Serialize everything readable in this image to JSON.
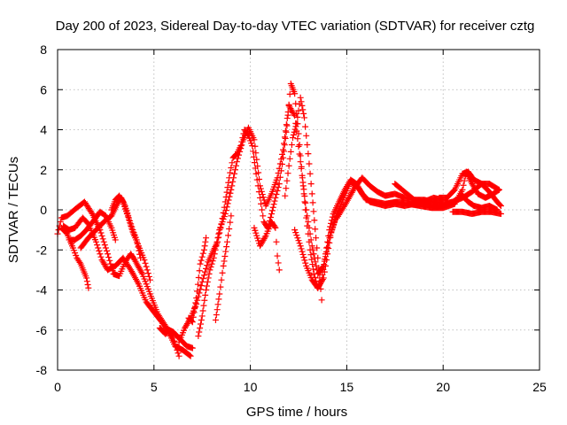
{
  "chart_data": {
    "type": "scatter",
    "title": "Day 200 of 2023, Sidereal Day-to-day VTEC variation (SDTVAR) for receiver cztg",
    "xlabel": "GPS time / hours",
    "ylabel": "SDTVAR / TECUs",
    "xlim": [
      0,
      25
    ],
    "ylim": [
      -8,
      8
    ],
    "xticks": [
      0,
      5,
      10,
      15,
      20,
      25
    ],
    "yticks": [
      -8,
      -6,
      -4,
      -2,
      0,
      2,
      4,
      6,
      8
    ],
    "grid": true,
    "marker": "plus",
    "color": "#ff0000",
    "series": [
      {
        "tracks": [
          [
            [
              0.0,
              -1.2
            ],
            [
              0.2,
              -0.4
            ],
            [
              0.5,
              -0.3
            ],
            [
              1.0,
              0.1
            ],
            [
              1.4,
              0.4
            ],
            [
              1.8,
              -0.2
            ],
            [
              2.2,
              -1.0
            ],
            [
              2.6,
              -2.2
            ],
            [
              2.9,
              -3.2
            ],
            [
              3.2,
              -3.3
            ],
            [
              3.5,
              -2.6
            ],
            [
              3.8,
              -2.2
            ],
            [
              4.0,
              -2.5
            ],
            [
              4.4,
              -3.2
            ],
            [
              4.8,
              -4.2
            ],
            [
              5.2,
              -5.2
            ],
            [
              5.6,
              -5.8
            ],
            [
              6.0,
              -6.4
            ],
            [
              6.3,
              -7.3
            ]
          ],
          [
            [
              0.3,
              -0.8
            ],
            [
              0.6,
              -1.0
            ],
            [
              0.9,
              -0.9
            ],
            [
              1.3,
              -0.4
            ],
            [
              1.6,
              -0.7
            ],
            [
              2.0,
              -1.6
            ],
            [
              2.3,
              -2.5
            ],
            [
              2.6,
              -3.0
            ],
            [
              3.0,
              -2.8
            ],
            [
              3.4,
              -2.4
            ],
            [
              3.8,
              -3.0
            ],
            [
              4.2,
              -3.7
            ],
            [
              4.6,
              -4.6
            ],
            [
              5.0,
              -5.1
            ],
            [
              5.4,
              -5.6
            ],
            [
              5.8,
              -6.2
            ],
            [
              6.1,
              -6.8
            ],
            [
              6.5,
              -7.0
            ],
            [
              6.9,
              -7.3
            ]
          ],
          [
            [
              0.2,
              -0.9
            ],
            [
              0.5,
              -1.2
            ],
            [
              0.8,
              -1.9
            ],
            [
              1.0,
              -2.4
            ],
            [
              1.2,
              -2.7
            ],
            [
              1.5,
              -3.4
            ],
            [
              1.6,
              -3.9
            ]
          ],
          [
            [
              0.6,
              -1.5
            ],
            [
              0.9,
              -1.5
            ],
            [
              1.2,
              -1.3
            ],
            [
              1.5,
              -1.0
            ],
            [
              1.9,
              -0.5
            ],
            [
              2.2,
              -0.1
            ],
            [
              2.5,
              -0.3
            ],
            [
              2.8,
              -0.9
            ],
            [
              3.0,
              -1.5
            ]
          ],
          [
            [
              1.2,
              -1.9
            ],
            [
              1.6,
              -1.4
            ],
            [
              2.0,
              -1.0
            ],
            [
              2.4,
              -0.6
            ],
            [
              2.8,
              -0.3
            ],
            [
              3.1,
              0.3
            ],
            [
              3.3,
              0.6
            ],
            [
              3.5,
              0.2
            ],
            [
              3.7,
              -0.4
            ],
            [
              3.9,
              -1.0
            ],
            [
              4.1,
              -1.5
            ],
            [
              4.3,
              -2.4
            ]
          ],
          [
            [
              2.8,
              0.0
            ],
            [
              3.0,
              0.5
            ],
            [
              3.2,
              0.7
            ],
            [
              3.4,
              0.4
            ],
            [
              3.6,
              -0.2
            ],
            [
              3.9,
              -1.1
            ],
            [
              4.2,
              -1.8
            ],
            [
              4.5,
              -2.5
            ],
            [
              4.8,
              -3.5
            ]
          ],
          [
            [
              5.3,
              -5.9
            ],
            [
              5.6,
              -6.2
            ],
            [
              5.8,
              -6.0
            ],
            [
              6.0,
              -6.1
            ],
            [
              6.2,
              -6.3
            ],
            [
              6.4,
              -6.5
            ],
            [
              6.7,
              -6.8
            ],
            [
              7.0,
              -6.9
            ]
          ],
          [
            [
              6.3,
              -6.6
            ],
            [
              6.6,
              -5.9
            ],
            [
              6.9,
              -5.4
            ],
            [
              7.2,
              -4.7
            ],
            [
              7.5,
              -3.6
            ],
            [
              7.8,
              -2.6
            ],
            [
              8.1,
              -2.0
            ],
            [
              8.3,
              -1.6
            ],
            [
              8.5,
              -0.7
            ],
            [
              8.7,
              0.4
            ],
            [
              8.9,
              1.6
            ],
            [
              9.1,
              2.6
            ],
            [
              9.3,
              2.8
            ],
            [
              9.5,
              3.2
            ],
            [
              9.7,
              4.0
            ],
            [
              9.9,
              3.7
            ],
            [
              10.1,
              3.2
            ],
            [
              10.3,
              1.8
            ],
            [
              10.5,
              0.6
            ],
            [
              10.7,
              -0.6
            ],
            [
              10.9,
              -0.9
            ],
            [
              11.1,
              -0.2
            ],
            [
              11.3,
              0.6
            ],
            [
              11.5,
              1.3
            ],
            [
              11.7,
              2.6
            ],
            [
              11.9,
              4.2
            ],
            [
              12.1,
              6.3
            ],
            [
              12.3,
              5.8
            ],
            [
              12.5,
              3.8
            ],
            [
              12.7,
              1.6
            ],
            [
              12.9,
              -0.4
            ],
            [
              13.1,
              -2.0
            ],
            [
              13.3,
              -3.2
            ],
            [
              13.5,
              -3.9
            ],
            [
              13.7,
              -3.5
            ],
            [
              13.9,
              -2.2
            ],
            [
              14.1,
              -1.0
            ],
            [
              14.3,
              -0.2
            ],
            [
              14.6,
              0.4
            ],
            [
              14.9,
              1.0
            ],
            [
              15.2,
              1.5
            ],
            [
              15.5,
              1.3
            ],
            [
              15.8,
              0.8
            ],
            [
              16.2,
              0.4
            ],
            [
              16.6,
              0.3
            ],
            [
              17.0,
              0.2
            ],
            [
              17.5,
              0.3
            ],
            [
              18.0,
              0.2
            ],
            [
              18.5,
              0.3
            ],
            [
              19.0,
              0.3
            ],
            [
              19.5,
              0.2
            ],
            [
              20.0,
              0.2
            ],
            [
              20.5,
              0.4
            ],
            [
              21.0,
              0.7
            ],
            [
              21.3,
              0.4
            ],
            [
              21.6,
              0.2
            ],
            [
              22.0,
              0.1
            ],
            [
              22.4,
              0.2
            ],
            [
              22.8,
              0.0
            ]
          ],
          [
            [
              7.3,
              -6.3
            ],
            [
              7.5,
              -5.3
            ],
            [
              7.7,
              -4.0
            ],
            [
              7.9,
              -3.0
            ],
            [
              8.1,
              -2.4
            ],
            [
              8.4,
              -1.0
            ],
            [
              8.7,
              -0.2
            ],
            [
              9.0,
              1.0
            ],
            [
              9.3,
              2.4
            ],
            [
              9.6,
              3.4
            ],
            [
              9.9,
              4.1
            ],
            [
              10.2,
              3.5
            ],
            [
              10.5,
              1.2
            ],
            [
              10.8,
              0.2
            ],
            [
              11.1,
              0.8
            ],
            [
              11.4,
              1.6
            ],
            [
              11.7,
              3.0
            ],
            [
              12.0,
              5.2
            ],
            [
              12.3,
              4.7
            ],
            [
              12.6,
              2.4
            ],
            [
              12.9,
              0.0
            ],
            [
              13.2,
              -1.8
            ],
            [
              13.5,
              -3.2
            ],
            [
              13.8,
              -2.8
            ],
            [
              14.1,
              -1.4
            ],
            [
              14.4,
              -0.5
            ],
            [
              14.8,
              0.5
            ],
            [
              15.2,
              1.4
            ],
            [
              15.6,
              1.1
            ],
            [
              16.0,
              0.5
            ],
            [
              16.5,
              0.4
            ],
            [
              17.0,
              0.3
            ],
            [
              17.6,
              0.4
            ],
            [
              18.2,
              0.3
            ],
            [
              18.8,
              0.2
            ],
            [
              19.4,
              0.1
            ],
            [
              20.0,
              0.1
            ],
            [
              20.6,
              0.3
            ],
            [
              21.0,
              1.0
            ],
            [
              21.2,
              1.9
            ],
            [
              21.5,
              1.3
            ],
            [
              21.8,
              0.8
            ],
            [
              22.2,
              0.6
            ],
            [
              22.6,
              0.8
            ],
            [
              22.9,
              1.0
            ]
          ],
          [
            [
              6.8,
              -5.4
            ],
            [
              7.0,
              -5.6
            ],
            [
              7.2,
              -4.4
            ],
            [
              7.4,
              -2.7
            ],
            [
              7.6,
              -2.0
            ],
            [
              7.7,
              -1.4
            ]
          ],
          [
            [
              8.2,
              -5.5
            ],
            [
              8.4,
              -4.2
            ],
            [
              8.6,
              -2.8
            ],
            [
              8.8,
              -1.6
            ],
            [
              9.0,
              -0.3
            ]
          ],
          [
            [
              10.2,
              -0.9
            ],
            [
              10.5,
              -1.8
            ],
            [
              10.8,
              -1.3
            ],
            [
              11.1,
              -0.6
            ],
            [
              11.3,
              -0.9
            ],
            [
              11.4,
              -2.3
            ],
            [
              11.5,
              -3.0
            ]
          ],
          [
            [
              11.8,
              0.7
            ],
            [
              12.0,
              2.2
            ],
            [
              12.2,
              3.6
            ],
            [
              12.4,
              4.3
            ],
            [
              12.6,
              5.6
            ],
            [
              12.8,
              4.6
            ],
            [
              13.0,
              2.8
            ],
            [
              13.2,
              0.8
            ],
            [
              13.4,
              -1.4
            ],
            [
              13.6,
              -3.4
            ],
            [
              13.7,
              -4.5
            ]
          ],
          [
            [
              12.3,
              -1.0
            ],
            [
              12.6,
              -1.8
            ],
            [
              12.9,
              -2.8
            ],
            [
              13.2,
              -3.5
            ],
            [
              13.5,
              -3.9
            ],
            [
              13.8,
              -3.4
            ],
            [
              14.0,
              -2.2
            ],
            [
              14.2,
              -1.1
            ],
            [
              14.5,
              -0.2
            ]
          ],
          [
            [
              14.5,
              -0.4
            ],
            [
              15.0,
              0.4
            ],
            [
              15.4,
              1.1
            ],
            [
              15.8,
              1.6
            ],
            [
              16.2,
              1.2
            ],
            [
              16.6,
              0.9
            ],
            [
              17.0,
              0.7
            ],
            [
              17.5,
              0.8
            ],
            [
              18.0,
              0.6
            ],
            [
              18.5,
              0.5
            ],
            [
              19.0,
              0.5
            ],
            [
              19.5,
              0.4
            ],
            [
              20.0,
              0.3
            ],
            [
              20.5,
              0.4
            ],
            [
              21.0,
              0.6
            ],
            [
              21.5,
              0.9
            ],
            [
              22.0,
              1.3
            ],
            [
              22.4,
              0.9
            ],
            [
              22.8,
              0.4
            ],
            [
              23.0,
              0.2
            ]
          ],
          [
            [
              17.5,
              1.3
            ],
            [
              18.0,
              0.9
            ],
            [
              18.5,
              0.5
            ],
            [
              19.0,
              0.4
            ],
            [
              19.5,
              0.6
            ],
            [
              20.0,
              0.5
            ]
          ],
          [
            [
              19.8,
              0.6
            ],
            [
              20.2,
              0.6
            ],
            [
              20.6,
              1.0
            ],
            [
              21.0,
              1.8
            ],
            [
              21.3,
              1.9
            ],
            [
              21.6,
              1.5
            ],
            [
              22.0,
              1.3
            ],
            [
              22.4,
              1.3
            ],
            [
              22.9,
              1.0
            ]
          ],
          [
            [
              20.5,
              -0.1
            ],
            [
              21.0,
              -0.1
            ],
            [
              21.5,
              -0.2
            ],
            [
              22.0,
              -0.1
            ],
            [
              22.5,
              -0.1
            ],
            [
              23.0,
              -0.2
            ]
          ]
        ]
      }
    ]
  }
}
